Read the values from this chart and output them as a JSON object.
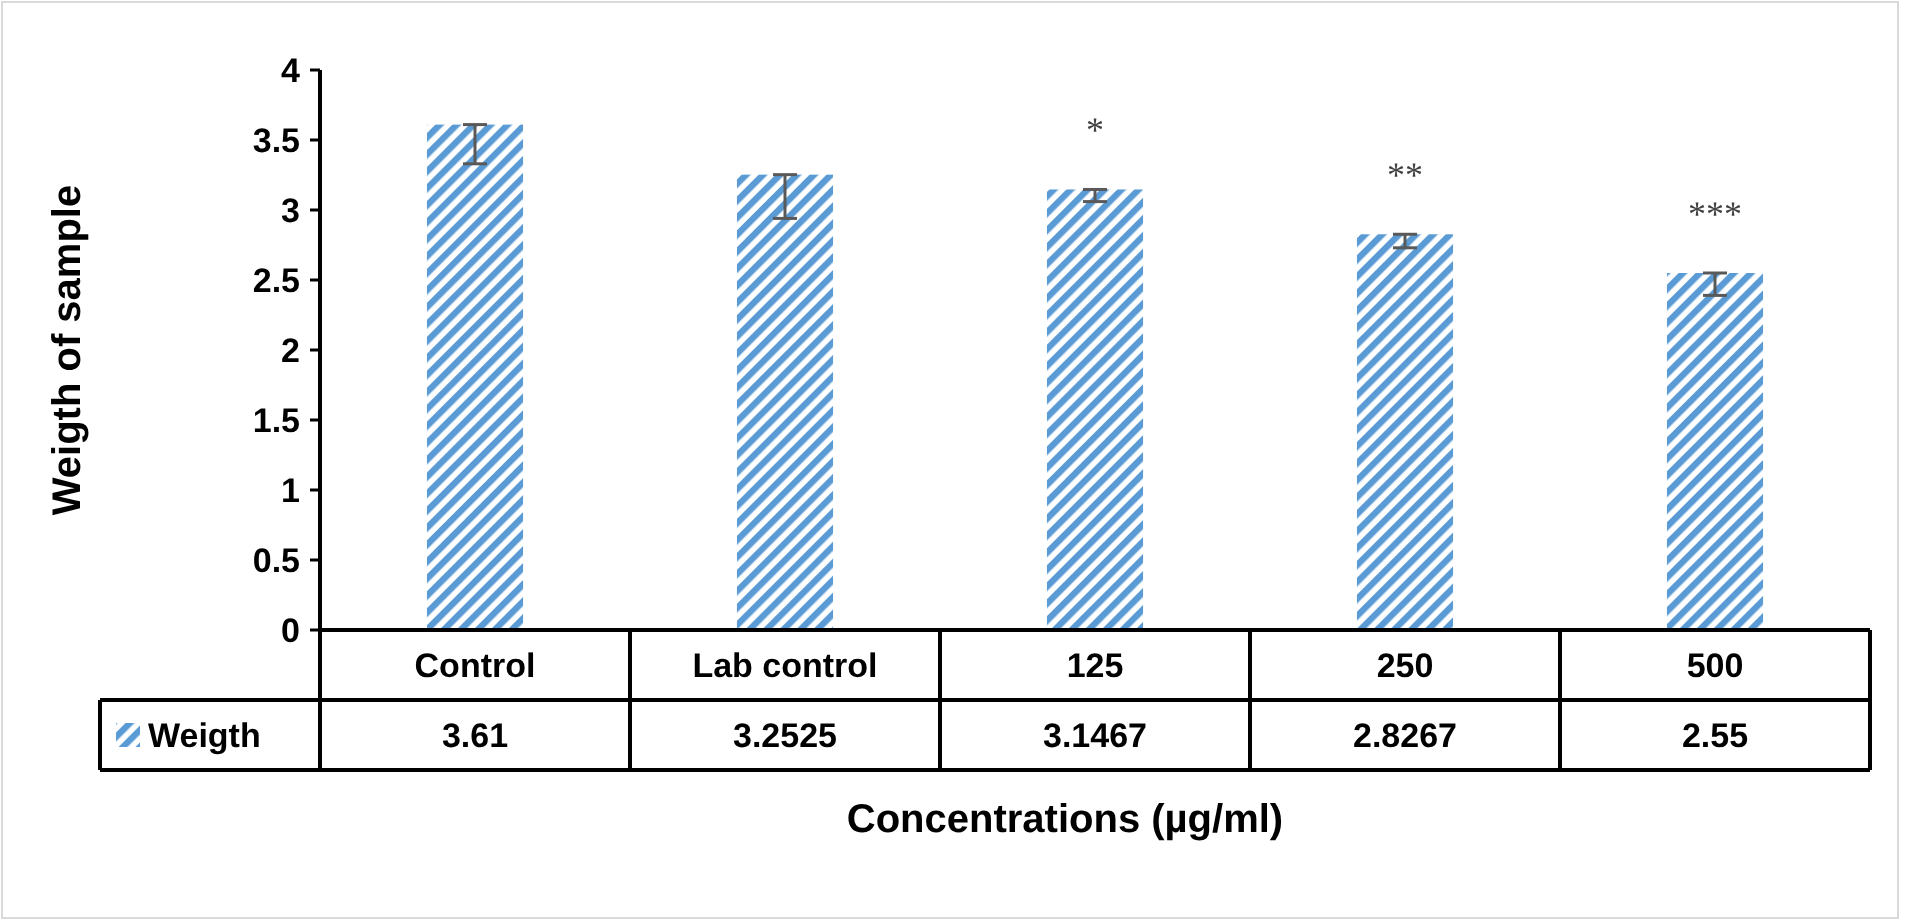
{
  "chart_data": {
    "type": "bar",
    "xlabel": "Concentrations (µg/ml)",
    "ylabel": "Weigth of sample",
    "categories": [
      "Control",
      "Lab control",
      "125",
      "250",
      "500"
    ],
    "series": [
      {
        "name": "Weigth",
        "color": "#5b9bd5",
        "values": [
          3.61,
          3.2525,
          3.1467,
          2.8267,
          2.55
        ],
        "errors": [
          [
            3.33,
            3.61
          ],
          [
            2.94,
            3.2525
          ],
          [
            3.06,
            3.1467
          ],
          [
            2.73,
            2.8267
          ],
          [
            2.39,
            2.55
          ]
        ]
      }
    ],
    "ylim": [
      0,
      4
    ],
    "yticks": [
      0,
      0.5,
      1,
      1.5,
      2,
      2.5,
      3,
      3.5,
      4
    ],
    "grid": false,
    "legend": "bottom",
    "data_labels": true,
    "annotations": [
      {
        "text": "*",
        "x": "125",
        "y": 3.1467
      },
      {
        "text": "**",
        "x": "250",
        "y": 2.8267
      },
      {
        "text": "***",
        "x": "500",
        "y": 2.55
      }
    ]
  }
}
